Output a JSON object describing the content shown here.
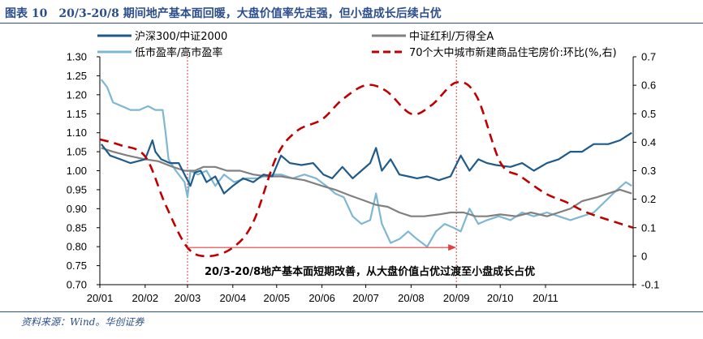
{
  "figure": {
    "title": "图表 10　20/3-20/8 期间地产基本面回暖，大盘价值率先走强，但小盘成长后续占优",
    "source": "资料来源：Wind。华创证券"
  },
  "colors": {
    "hs300_zz2000": "#1f5b8a",
    "zz_dividend_wind_a": "#808080",
    "low_pe_high_pe": "#7fb7d3",
    "house_price_mom": "#c00000",
    "annotation": "#e04040",
    "frame": "#2d4e8c"
  },
  "chart_data": {
    "type": "line",
    "x_tick_labels": [
      "20/01",
      "20/02",
      "20/03",
      "20/04",
      "20/05",
      "20/06",
      "20/07",
      "20/08",
      "20/09",
      "20/10",
      "20/11"
    ],
    "x_range": [
      "2020-01-01",
      "2020-12-31"
    ],
    "y_left": {
      "ticks": [
        "0.70",
        "0.75",
        "0.80",
        "0.85",
        "0.90",
        "0.95",
        "1.00",
        "1.05",
        "1.10",
        "1.15",
        "1.20",
        "1.25",
        "1.30"
      ],
      "range": [
        0.7,
        1.3
      ]
    },
    "y_right": {
      "ticks": [
        "-0.1",
        "0",
        "0.1",
        "0.2",
        "0.3",
        "0.4",
        "0.5",
        "0.6",
        "0.7"
      ],
      "range": [
        -0.1,
        0.7
      ]
    },
    "legend": {
      "placement": "top"
    },
    "series": [
      {
        "name": "沪深300/中证2000",
        "axis": "left",
        "style": "solid",
        "color": "#1f5b8a",
        "points": [
          [
            "2020-01-02",
            1.07
          ],
          [
            "2020-01-08",
            1.04
          ],
          [
            "2020-01-15",
            1.03
          ],
          [
            "2020-01-22",
            1.02
          ],
          [
            "2020-02-01",
            1.03
          ],
          [
            "2020-02-06",
            1.08
          ],
          [
            "2020-02-08",
            1.05
          ],
          [
            "2020-02-12",
            1.03
          ],
          [
            "2020-02-18",
            1.02
          ],
          [
            "2020-02-24",
            1.02
          ],
          [
            "2020-02-28",
            0.99
          ],
          [
            "2020-03-03",
            0.96
          ],
          [
            "2020-03-06",
            0.995
          ],
          [
            "2020-03-10",
            1.0
          ],
          [
            "2020-03-14",
            0.97
          ],
          [
            "2020-03-20",
            0.985
          ],
          [
            "2020-03-26",
            0.94
          ],
          [
            "2020-04-01",
            0.96
          ],
          [
            "2020-04-08",
            0.98
          ],
          [
            "2020-04-15",
            0.97
          ],
          [
            "2020-04-22",
            0.99
          ],
          [
            "2020-04-28",
            0.985
          ],
          [
            "2020-05-04",
            1.04
          ],
          [
            "2020-05-10",
            1.02
          ],
          [
            "2020-05-18",
            1.015
          ],
          [
            "2020-05-26",
            1.02
          ],
          [
            "2020-06-02",
            0.99
          ],
          [
            "2020-06-08",
            0.98
          ],
          [
            "2020-06-15",
            1.01
          ],
          [
            "2020-06-22",
            0.98
          ],
          [
            "2020-06-28",
            1.0
          ],
          [
            "2020-07-04",
            1.02
          ],
          [
            "2020-07-08",
            1.06
          ],
          [
            "2020-07-12",
            1.0
          ],
          [
            "2020-07-18",
            1.03
          ],
          [
            "2020-07-24",
            0.99
          ],
          [
            "2020-07-30",
            0.985
          ],
          [
            "2020-08-05",
            0.98
          ],
          [
            "2020-08-12",
            0.985
          ],
          [
            "2020-08-20",
            0.975
          ],
          [
            "2020-08-28",
            0.985
          ],
          [
            "2020-09-04",
            1.04
          ],
          [
            "2020-09-10",
            1.0
          ],
          [
            "2020-09-16",
            1.03
          ],
          [
            "2020-09-22",
            1.02
          ],
          [
            "2020-09-28",
            1.015
          ],
          [
            "2020-10-08",
            1.01
          ],
          [
            "2020-10-16",
            1.02
          ],
          [
            "2020-10-24",
            1.0
          ],
          [
            "2020-11-02",
            1.02
          ],
          [
            "2020-11-10",
            1.03
          ],
          [
            "2020-11-18",
            1.05
          ],
          [
            "2020-11-26",
            1.05
          ],
          [
            "2020-12-04",
            1.07
          ],
          [
            "2020-12-14",
            1.07
          ],
          [
            "2020-12-22",
            1.08
          ],
          [
            "2020-12-30",
            1.1
          ]
        ]
      },
      {
        "name": "中证红利/万得全A",
        "axis": "left",
        "style": "solid",
        "color": "#808080",
        "points": [
          [
            "2020-01-02",
            1.06
          ],
          [
            "2020-01-10",
            1.05
          ],
          [
            "2020-01-20",
            1.04
          ],
          [
            "2020-02-01",
            1.03
          ],
          [
            "2020-02-10",
            1.025
          ],
          [
            "2020-02-20",
            1.01
          ],
          [
            "2020-02-28",
            1.0
          ],
          [
            "2020-03-06",
            1.0
          ],
          [
            "2020-03-12",
            1.01
          ],
          [
            "2020-03-20",
            1.01
          ],
          [
            "2020-03-28",
            1.0
          ],
          [
            "2020-04-06",
            1.0
          ],
          [
            "2020-04-15",
            0.99
          ],
          [
            "2020-04-24",
            0.985
          ],
          [
            "2020-05-04",
            0.985
          ],
          [
            "2020-05-12",
            0.98
          ],
          [
            "2020-05-20",
            0.975
          ],
          [
            "2020-06-01",
            0.96
          ],
          [
            "2020-06-10",
            0.95
          ],
          [
            "2020-06-20",
            0.935
          ],
          [
            "2020-07-01",
            0.92
          ],
          [
            "2020-07-08",
            0.91
          ],
          [
            "2020-07-16",
            0.905
          ],
          [
            "2020-07-24",
            0.89
          ],
          [
            "2020-08-01",
            0.88
          ],
          [
            "2020-08-10",
            0.88
          ],
          [
            "2020-08-20",
            0.885
          ],
          [
            "2020-08-28",
            0.89
          ],
          [
            "2020-09-06",
            0.89
          ],
          [
            "2020-09-14",
            0.88
          ],
          [
            "2020-09-22",
            0.88
          ],
          [
            "2020-10-01",
            0.885
          ],
          [
            "2020-10-12",
            0.88
          ],
          [
            "2020-10-22",
            0.89
          ],
          [
            "2020-11-02",
            0.88
          ],
          [
            "2020-11-10",
            0.89
          ],
          [
            "2020-11-18",
            0.9
          ],
          [
            "2020-11-26",
            0.92
          ],
          [
            "2020-12-06",
            0.93
          ],
          [
            "2020-12-14",
            0.94
          ],
          [
            "2020-12-22",
            0.95
          ],
          [
            "2020-12-30",
            0.94
          ]
        ]
      },
      {
        "name": "低市盈率/高市盈率",
        "axis": "left",
        "style": "solid",
        "color": "#7fb7d3",
        "points": [
          [
            "2020-01-02",
            1.24
          ],
          [
            "2020-01-06",
            1.22
          ],
          [
            "2020-01-10",
            1.18
          ],
          [
            "2020-01-16",
            1.17
          ],
          [
            "2020-01-22",
            1.16
          ],
          [
            "2020-01-28",
            1.16
          ],
          [
            "2020-02-03",
            1.17
          ],
          [
            "2020-02-08",
            1.16
          ],
          [
            "2020-02-13",
            1.16
          ],
          [
            "2020-02-15",
            1.1
          ],
          [
            "2020-02-17",
            1.03
          ],
          [
            "2020-02-22",
            1.0
          ],
          [
            "2020-02-28",
            0.97
          ],
          [
            "2020-03-01",
            0.93
          ],
          [
            "2020-03-03",
            1.0
          ],
          [
            "2020-03-08",
            0.99
          ],
          [
            "2020-03-14",
            1.0
          ],
          [
            "2020-03-20",
            0.96
          ],
          [
            "2020-03-26",
            0.99
          ],
          [
            "2020-04-02",
            0.97
          ],
          [
            "2020-04-10",
            0.98
          ],
          [
            "2020-04-18",
            0.98
          ],
          [
            "2020-04-26",
            0.99
          ],
          [
            "2020-05-04",
            0.99
          ],
          [
            "2020-05-12",
            0.98
          ],
          [
            "2020-05-20",
            0.99
          ],
          [
            "2020-05-28",
            0.98
          ],
          [
            "2020-06-04",
            0.96
          ],
          [
            "2020-06-10",
            0.94
          ],
          [
            "2020-06-16",
            0.93
          ],
          [
            "2020-06-22",
            0.88
          ],
          [
            "2020-06-28",
            0.86
          ],
          [
            "2020-07-04",
            0.87
          ],
          [
            "2020-07-08",
            0.94
          ],
          [
            "2020-07-12",
            0.86
          ],
          [
            "2020-07-18",
            0.81
          ],
          [
            "2020-07-24",
            0.82
          ],
          [
            "2020-07-30",
            0.84
          ],
          [
            "2020-08-05",
            0.82
          ],
          [
            "2020-08-12",
            0.8
          ],
          [
            "2020-08-18",
            0.84
          ],
          [
            "2020-08-24",
            0.86
          ],
          [
            "2020-08-30",
            0.85
          ],
          [
            "2020-09-04",
            0.84
          ],
          [
            "2020-09-10",
            0.9
          ],
          [
            "2020-09-16",
            0.86
          ],
          [
            "2020-09-22",
            0.87
          ],
          [
            "2020-09-30",
            0.88
          ],
          [
            "2020-10-08",
            0.87
          ],
          [
            "2020-10-16",
            0.89
          ],
          [
            "2020-10-24",
            0.88
          ],
          [
            "2020-11-02",
            0.89
          ],
          [
            "2020-11-10",
            0.88
          ],
          [
            "2020-11-18",
            0.87
          ],
          [
            "2020-11-26",
            0.88
          ],
          [
            "2020-12-04",
            0.89
          ],
          [
            "2020-12-12",
            0.92
          ],
          [
            "2020-12-20",
            0.95
          ],
          [
            "2020-12-26",
            0.97
          ],
          [
            "2020-12-30",
            0.96
          ]
        ]
      },
      {
        "name": "70个大中城市新建商品住宅房价:环比(%,右)",
        "axis": "right",
        "style": "dashed",
        "color": "#c00000",
        "points": [
          [
            "2020-01-01",
            0.41
          ],
          [
            "2020-01-15",
            0.39
          ],
          [
            "2020-02-01",
            0.35
          ],
          [
            "2020-02-15",
            0.18
          ],
          [
            "2020-03-01",
            0.03
          ],
          [
            "2020-03-15",
            0.0
          ],
          [
            "2020-04-01",
            0.03
          ],
          [
            "2020-04-15",
            0.12
          ],
          [
            "2020-05-01",
            0.35
          ],
          [
            "2020-05-15",
            0.44
          ],
          [
            "2020-06-01",
            0.48
          ],
          [
            "2020-06-15",
            0.55
          ],
          [
            "2020-07-01",
            0.6
          ],
          [
            "2020-07-15",
            0.58
          ],
          [
            "2020-08-01",
            0.5
          ],
          [
            "2020-08-15",
            0.53
          ],
          [
            "2020-09-01",
            0.61
          ],
          [
            "2020-09-15",
            0.56
          ],
          [
            "2020-10-01",
            0.33
          ],
          [
            "2020-10-15",
            0.28
          ],
          [
            "2020-11-01",
            0.22
          ],
          [
            "2020-11-15",
            0.19
          ],
          [
            "2020-12-01",
            0.15
          ],
          [
            "2020-12-31",
            0.1
          ]
        ]
      }
    ],
    "annotations": {
      "period_start": "2020-03-01",
      "period_end": "2020-09-01",
      "arrow_level": 0.8,
      "text": "20/3-20/8地产基本面短期改善，从大盘价值占优过渡至小盘成长占优"
    }
  }
}
